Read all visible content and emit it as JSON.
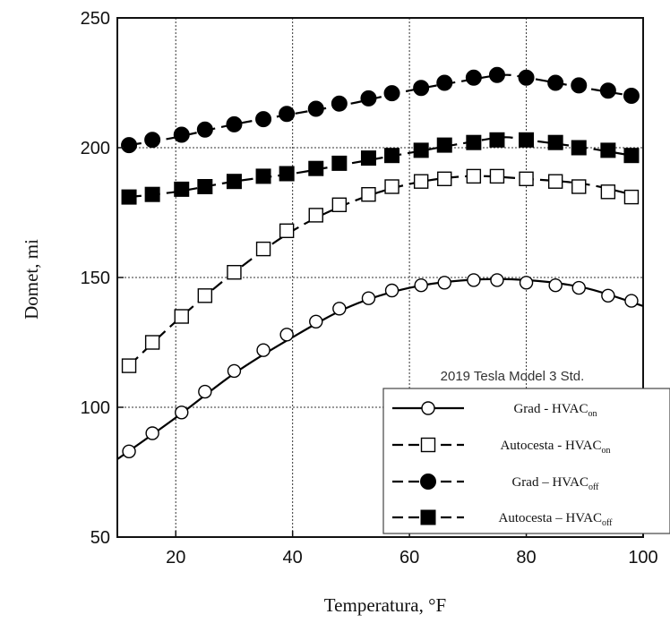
{
  "chart_data": {
    "type": "line",
    "xlabel": "Temperatura, °F",
    "ylabel": "Domet, mi",
    "xlim": [
      10,
      100
    ],
    "ylim": [
      50,
      250
    ],
    "xticks": [
      20,
      40,
      60,
      80,
      100
    ],
    "yticks": [
      50,
      100,
      150,
      200,
      250
    ],
    "grid": true,
    "legend_position": "bottom-right",
    "legend_title": "2019 Tesla Model 3 Std.",
    "series": [
      {
        "name": "Grad - HVAC_on",
        "legend_main": "Grad - HVAC",
        "legend_sub": "on",
        "line": "solid",
        "marker": "circle-open",
        "x": [
          12,
          16,
          21,
          25,
          30,
          35,
          39,
          44,
          48,
          53,
          57,
          62,
          66,
          71,
          75,
          80,
          85,
          89,
          94,
          98
        ],
        "y": [
          83,
          90,
          98,
          106,
          114,
          122,
          128,
          133,
          138,
          142,
          145,
          147,
          148,
          149,
          149,
          148,
          147,
          146,
          143,
          141
        ],
        "curve_x": [
          10,
          20,
          30,
          40,
          50,
          60,
          70,
          80,
          90,
          100
        ],
        "curve_y": [
          80,
          96,
          113,
          127,
          139,
          146,
          149,
          149,
          146,
          139
        ]
      },
      {
        "name": "Autocesta - HVAC_on",
        "legend_main": "Autocesta - HVAC",
        "legend_sub": "on",
        "line": "dashed",
        "marker": "square-open",
        "x": [
          12,
          16,
          21,
          25,
          30,
          35,
          39,
          44,
          48,
          53,
          57,
          62,
          66,
          71,
          75,
          80,
          85,
          89,
          94,
          98
        ],
        "y": [
          116,
          125,
          135,
          143,
          152,
          161,
          168,
          174,
          178,
          182,
          185,
          187,
          188,
          189,
          189,
          188,
          187,
          185,
          183,
          181
        ],
        "curve_x": [
          12,
          20,
          30,
          40,
          50,
          60,
          70,
          80,
          90,
          98
        ],
        "curve_y": [
          116,
          133,
          152,
          168,
          179,
          186,
          189,
          188,
          186,
          182
        ]
      },
      {
        "name": "Grad – HVAC_off",
        "legend_main": "Grad – HVAC",
        "legend_sub": "off",
        "line": "dashed",
        "marker": "circle-filled",
        "x": [
          12,
          16,
          21,
          25,
          30,
          35,
          39,
          44,
          48,
          53,
          57,
          62,
          66,
          71,
          75,
          80,
          85,
          89,
          94,
          98
        ],
        "y": [
          201,
          203,
          205,
          207,
          209,
          211,
          213,
          215,
          217,
          219,
          221,
          223,
          225,
          227,
          228,
          227,
          225,
          224,
          222,
          220
        ],
        "curve_x": [
          12,
          20,
          30,
          40,
          50,
          60,
          70,
          76,
          80,
          90,
          98
        ],
        "curve_y": [
          201,
          204,
          209,
          213,
          217,
          222,
          226,
          228,
          227,
          223,
          220
        ]
      },
      {
        "name": "Autocesta – HVAC_off",
        "legend_main": "Autocesta – HVAC",
        "legend_sub": "off",
        "line": "dashed",
        "marker": "square-filled",
        "x": [
          12,
          16,
          21,
          25,
          30,
          35,
          39,
          44,
          48,
          53,
          57,
          62,
          66,
          71,
          75,
          80,
          85,
          89,
          94,
          98
        ],
        "y": [
          181,
          182,
          184,
          185,
          187,
          189,
          190,
          192,
          194,
          196,
          197,
          199,
          201,
          202,
          203,
          203,
          202,
          200,
          199,
          197
        ],
        "curve_x": [
          12,
          20,
          30,
          40,
          50,
          60,
          70,
          76,
          80,
          90,
          98
        ],
        "curve_y": [
          181,
          183,
          187,
          190,
          194,
          198,
          202,
          204,
          203,
          200,
          197
        ]
      }
    ]
  }
}
